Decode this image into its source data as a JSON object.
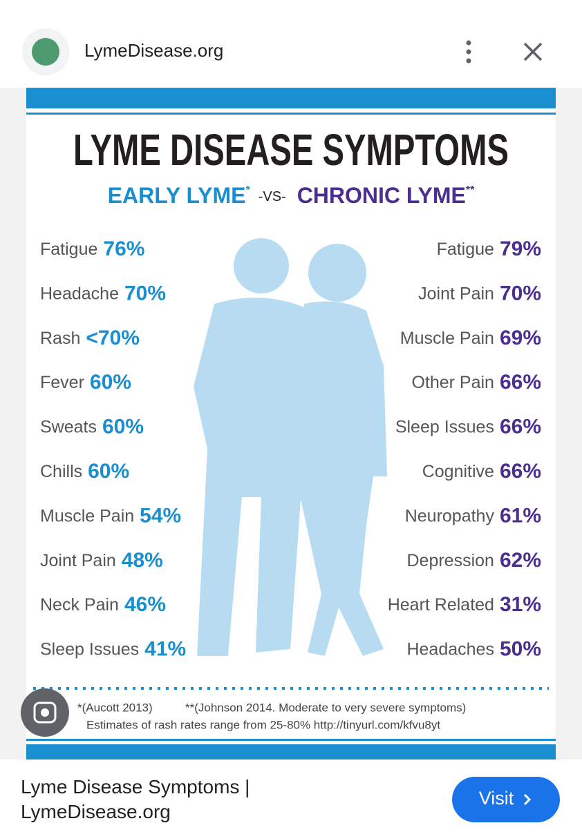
{
  "header": {
    "site_name": "LymeDisease.org"
  },
  "infographic": {
    "title": "LYME DISEASE SYMPTOMS",
    "early_heading": "EARLY LYME",
    "early_mark": "*",
    "versus": "-VS-",
    "chronic_heading": "CHRONIC LYME",
    "chronic_mark": "**",
    "early": [
      {
        "label": "Fatigue",
        "value": "76%"
      },
      {
        "label": "Headache",
        "value": "70%"
      },
      {
        "label": "Rash",
        "value": "<70%"
      },
      {
        "label": "Fever",
        "value": "60%"
      },
      {
        "label": "Sweats",
        "value": "60%"
      },
      {
        "label": "Chills",
        "value": "60%"
      },
      {
        "label": "Muscle Pain",
        "value": "54%"
      },
      {
        "label": "Joint Pain",
        "value": "48%"
      },
      {
        "label": "Neck Pain",
        "value": "46%"
      },
      {
        "label": "Sleep Issues",
        "value": "41%"
      }
    ],
    "chronic": [
      {
        "label": "Fatigue",
        "value": "79%"
      },
      {
        "label": "Joint Pain",
        "value": "70%"
      },
      {
        "label": "Muscle Pain",
        "value": "69%"
      },
      {
        "label": "Other Pain",
        "value": "66%"
      },
      {
        "label": "Sleep Issues",
        "value": "66%"
      },
      {
        "label": "Cognitive",
        "value": "66%"
      },
      {
        "label": "Neuropathy",
        "value": "61%"
      },
      {
        "label": "Depression",
        "value": "62%"
      },
      {
        "label": "Heart Related",
        "value": "31%"
      },
      {
        "label": "Headaches",
        "value": "50%"
      }
    ],
    "footnotes": [
      "*(Aucott 2013)",
      "**(Johnson 2014. Moderate to very severe symptoms)",
      "Estimates of rash rates range from 25-80% http://tinyurl.com/kfvu8yt"
    ]
  },
  "footer": {
    "caption": "Lyme Disease Symptoms | LymeDisease.org",
    "button": "Visit"
  }
}
